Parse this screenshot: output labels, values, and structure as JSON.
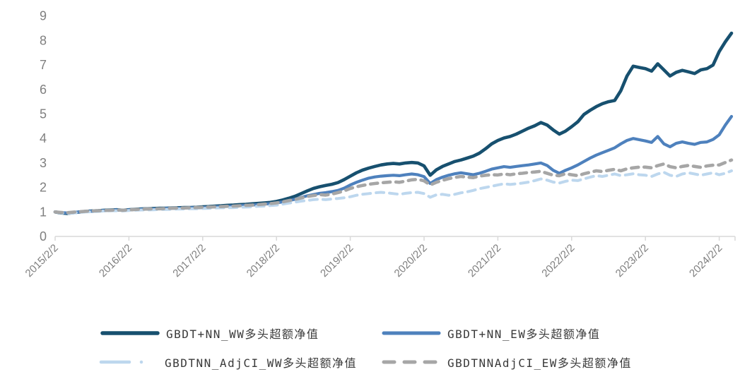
{
  "chart_data": {
    "type": "line",
    "title": "",
    "xlabel": "",
    "ylabel": "",
    "grid": "off",
    "legend_position": "bottom",
    "x_axis": {
      "tick_labels": [
        "2015/2/2",
        "2016/2/2",
        "2017/2/2",
        "2018/2/2",
        "2019/2/2",
        "2020/2/2",
        "2021/2/2",
        "2022/2/2",
        "2023/2/2",
        "2024/2/2"
      ],
      "start": "2015/2/2",
      "frequency": "monthly"
    },
    "y_axis": {
      "tick_labels": [
        "0",
        "1",
        "2",
        "3",
        "4",
        "5",
        "6",
        "7",
        "8",
        "9"
      ],
      "ylim": [
        0,
        9
      ]
    },
    "axis_color": "#d9d9d9",
    "tick_label_color": "#7f7f7f",
    "legend_text_color": "#3a3a3a",
    "series": [
      {
        "name": "GBDT+NN_WW多头超额净值",
        "color": "#17506f",
        "style": "solid",
        "values": [
          1.0,
          0.96,
          0.94,
          0.97,
          1.0,
          1.02,
          1.04,
          1.05,
          1.07,
          1.08,
          1.09,
          1.07,
          1.09,
          1.11,
          1.12,
          1.13,
          1.14,
          1.15,
          1.15,
          1.16,
          1.17,
          1.18,
          1.18,
          1.19,
          1.21,
          1.22,
          1.24,
          1.25,
          1.27,
          1.28,
          1.3,
          1.31,
          1.33,
          1.35,
          1.37,
          1.39,
          1.43,
          1.49,
          1.56,
          1.64,
          1.75,
          1.86,
          1.96,
          2.03,
          2.08,
          2.13,
          2.2,
          2.32,
          2.46,
          2.6,
          2.71,
          2.79,
          2.86,
          2.92,
          2.96,
          2.98,
          2.96,
          3.0,
          3.02,
          3.0,
          2.88,
          2.5,
          2.72,
          2.86,
          2.96,
          3.06,
          3.12,
          3.2,
          3.28,
          3.4,
          3.58,
          3.78,
          3.92,
          4.02,
          4.08,
          4.18,
          4.3,
          4.42,
          4.52,
          4.65,
          4.55,
          4.35,
          4.18,
          4.3,
          4.48,
          4.68,
          4.98,
          5.15,
          5.3,
          5.42,
          5.5,
          5.55,
          5.95,
          6.55,
          6.95,
          6.9,
          6.85,
          6.75,
          7.05,
          6.8,
          6.55,
          6.7,
          6.78,
          6.72,
          6.65,
          6.8,
          6.85,
          7.0,
          7.55,
          7.95,
          8.3
        ]
      },
      {
        "name": "GBDT+NN_EW多头超额净值",
        "color": "#4e81bd",
        "style": "solid",
        "values": [
          1.0,
          0.97,
          0.96,
          0.98,
          1.0,
          1.02,
          1.03,
          1.04,
          1.06,
          1.07,
          1.08,
          1.06,
          1.08,
          1.1,
          1.11,
          1.12,
          1.12,
          1.13,
          1.14,
          1.15,
          1.15,
          1.16,
          1.17,
          1.17,
          1.18,
          1.19,
          1.21,
          1.22,
          1.23,
          1.24,
          1.26,
          1.27,
          1.28,
          1.3,
          1.32,
          1.34,
          1.37,
          1.41,
          1.46,
          1.52,
          1.59,
          1.66,
          1.71,
          1.76,
          1.79,
          1.83,
          1.88,
          1.97,
          2.1,
          2.21,
          2.3,
          2.38,
          2.43,
          2.46,
          2.48,
          2.5,
          2.48,
          2.52,
          2.55,
          2.52,
          2.44,
          2.16,
          2.32,
          2.42,
          2.5,
          2.56,
          2.6,
          2.56,
          2.52,
          2.58,
          2.66,
          2.75,
          2.8,
          2.85,
          2.82,
          2.86,
          2.89,
          2.92,
          2.96,
          3.0,
          2.9,
          2.7,
          2.58,
          2.7,
          2.8,
          2.92,
          3.06,
          3.2,
          3.32,
          3.42,
          3.52,
          3.62,
          3.78,
          3.92,
          4.0,
          3.95,
          3.9,
          3.84,
          4.08,
          3.78,
          3.66,
          3.8,
          3.86,
          3.8,
          3.76,
          3.84,
          3.86,
          3.96,
          4.15,
          4.55,
          4.9
        ]
      },
      {
        "name": "GBDTNN_AdjCI_WW多头超额净值",
        "color": "#bdd7ee",
        "style": "dash-dot",
        "values": [
          1.0,
          0.96,
          0.94,
          0.96,
          0.98,
          1.0,
          1.01,
          1.02,
          1.04,
          1.05,
          1.05,
          1.04,
          1.06,
          1.07,
          1.08,
          1.08,
          1.09,
          1.1,
          1.1,
          1.11,
          1.12,
          1.12,
          1.13,
          1.13,
          1.14,
          1.15,
          1.16,
          1.17,
          1.17,
          1.18,
          1.19,
          1.2,
          1.21,
          1.23,
          1.24,
          1.26,
          1.28,
          1.32,
          1.36,
          1.4,
          1.44,
          1.47,
          1.5,
          1.52,
          1.5,
          1.53,
          1.55,
          1.58,
          1.62,
          1.68,
          1.72,
          1.75,
          1.78,
          1.8,
          1.78,
          1.75,
          1.72,
          1.76,
          1.79,
          1.8,
          1.75,
          1.6,
          1.7,
          1.72,
          1.68,
          1.72,
          1.78,
          1.82,
          1.88,
          1.95,
          2.0,
          2.05,
          2.1,
          2.15,
          2.12,
          2.15,
          2.18,
          2.22,
          2.28,
          2.35,
          2.3,
          2.22,
          2.18,
          2.25,
          2.3,
          2.28,
          2.35,
          2.42,
          2.48,
          2.45,
          2.5,
          2.55,
          2.48,
          2.52,
          2.56,
          2.52,
          2.5,
          2.45,
          2.55,
          2.62,
          2.5,
          2.45,
          2.55,
          2.6,
          2.55,
          2.5,
          2.55,
          2.6,
          2.52,
          2.58,
          2.68
        ]
      },
      {
        "name": "GBDTNNAdjCI_EW多头超额净值",
        "color": "#a6a6a6",
        "style": "dashed",
        "values": [
          1.0,
          0.98,
          0.97,
          0.99,
          1.01,
          1.03,
          1.04,
          1.05,
          1.06,
          1.07,
          1.08,
          1.07,
          1.08,
          1.1,
          1.11,
          1.12,
          1.13,
          1.13,
          1.14,
          1.15,
          1.16,
          1.16,
          1.17,
          1.18,
          1.19,
          1.2,
          1.21,
          1.22,
          1.23,
          1.24,
          1.25,
          1.27,
          1.28,
          1.3,
          1.32,
          1.34,
          1.37,
          1.41,
          1.46,
          1.51,
          1.57,
          1.63,
          1.67,
          1.71,
          1.69,
          1.73,
          1.79,
          1.86,
          1.96,
          2.03,
          2.08,
          2.13,
          2.16,
          2.19,
          2.21,
          2.23,
          2.21,
          2.26,
          2.31,
          2.33,
          2.27,
          2.1,
          2.21,
          2.29,
          2.36,
          2.41,
          2.45,
          2.42,
          2.4,
          2.46,
          2.5,
          2.52,
          2.51,
          2.55,
          2.52,
          2.56,
          2.58,
          2.61,
          2.63,
          2.66,
          2.58,
          2.5,
          2.48,
          2.56,
          2.52,
          2.48,
          2.56,
          2.62,
          2.68,
          2.65,
          2.7,
          2.74,
          2.68,
          2.76,
          2.8,
          2.83,
          2.83,
          2.8,
          2.89,
          2.96,
          2.85,
          2.8,
          2.86,
          2.9,
          2.86,
          2.82,
          2.88,
          2.91,
          2.92,
          3.02,
          3.12
        ]
      }
    ]
  }
}
